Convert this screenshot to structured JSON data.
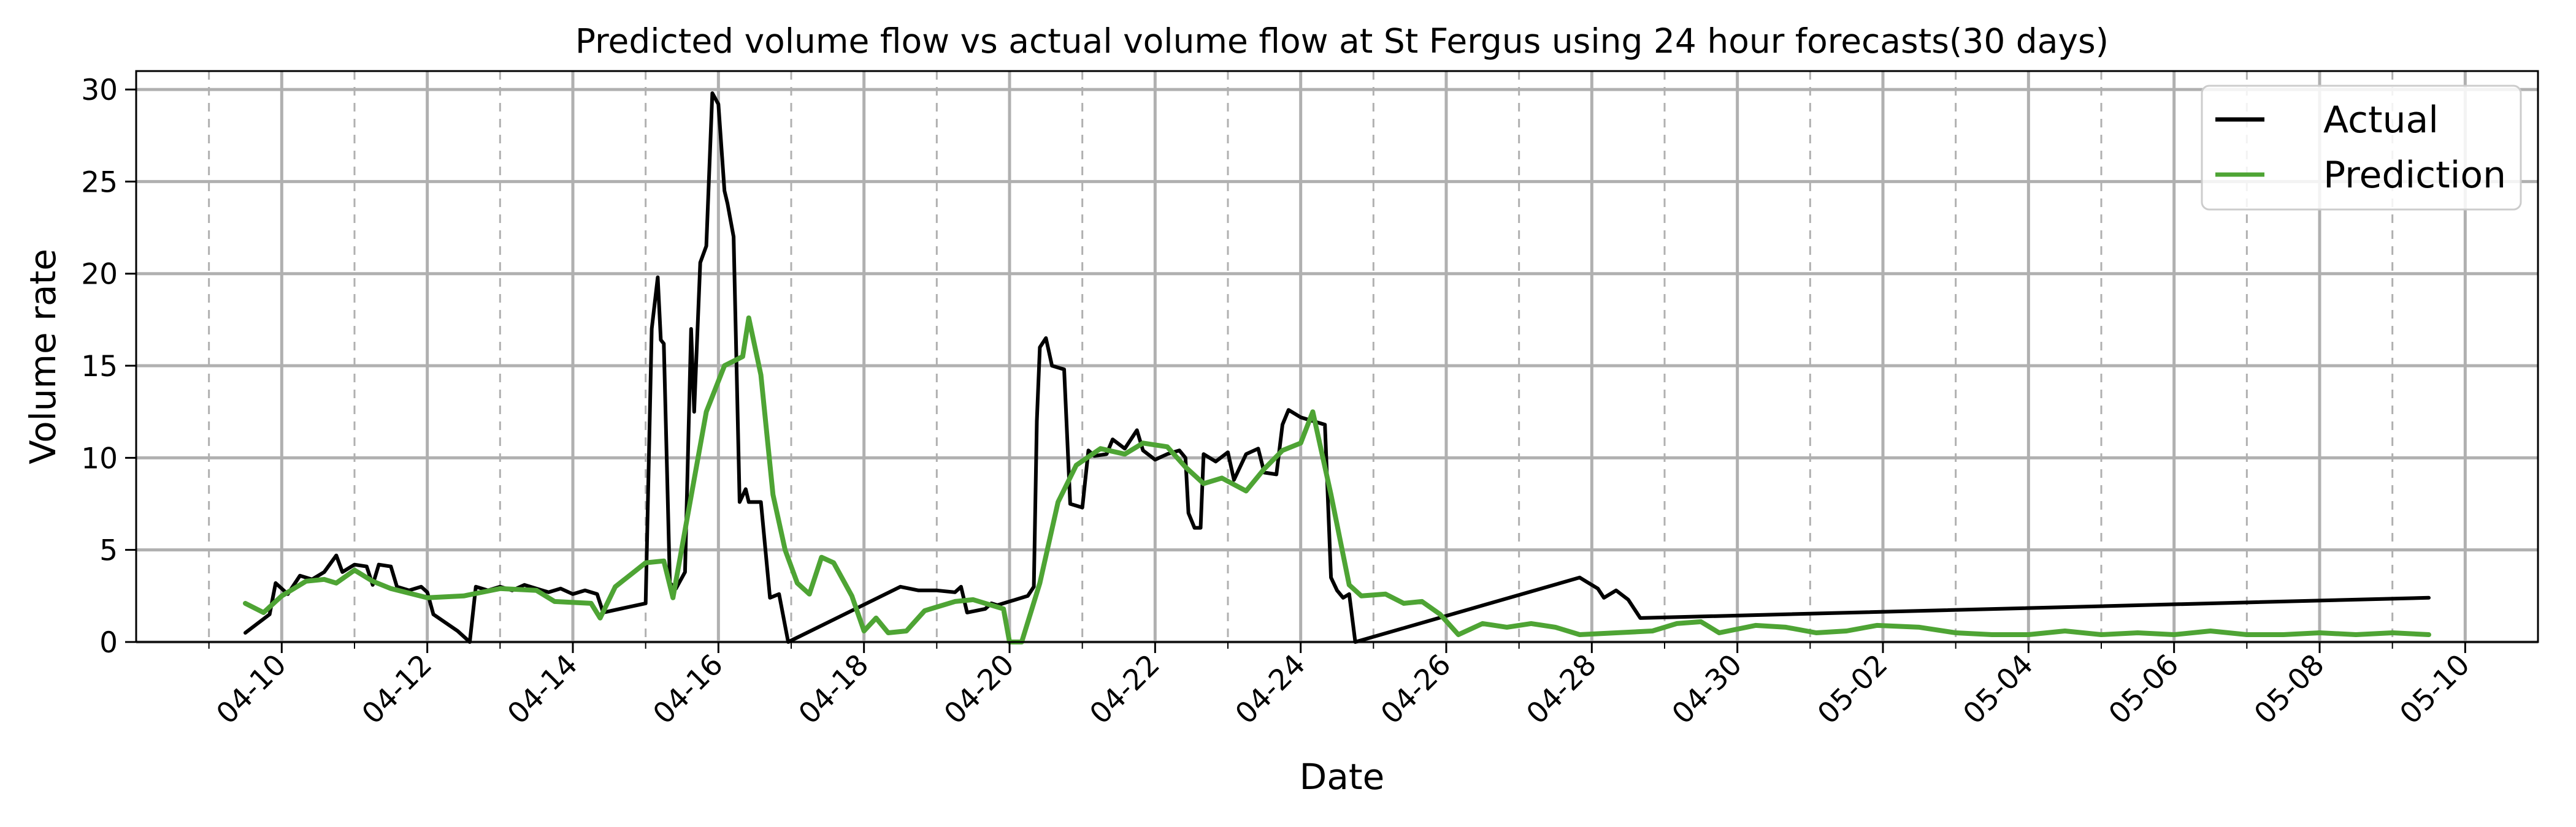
{
  "chart_data": {
    "type": "line",
    "title": "Predicted volume flow vs actual volume flow at St Fergus using 24 hour forecasts(30 days)",
    "xlabel": "Date",
    "ylabel": "Volume rate",
    "ylim": [
      0,
      31
    ],
    "xlim": [
      "2024-04-08",
      "2024-05-11"
    ],
    "x_ticks": [
      "04-10",
      "04-12",
      "04-14",
      "04-16",
      "04-18",
      "04-20",
      "04-22",
      "04-24",
      "04-26",
      "04-28",
      "04-30",
      "05-02",
      "05-04",
      "05-06",
      "05-08",
      "05-10"
    ],
    "y_ticks": [
      "0",
      "5",
      "10",
      "15",
      "20",
      "25",
      "30"
    ],
    "grid": true,
    "legend_position": "top-right",
    "series": [
      {
        "name": "Actual",
        "color": "#000000",
        "points": [
          [
            "2024-04-09 12:00",
            0.5
          ],
          [
            "2024-04-09 16:00",
            1.0
          ],
          [
            "2024-04-09 20:00",
            1.5
          ],
          [
            "2024-04-09 22:00",
            3.2
          ],
          [
            "2024-04-10 02:00",
            2.6
          ],
          [
            "2024-04-10 06:00",
            3.6
          ],
          [
            "2024-04-10 10:00",
            3.4
          ],
          [
            "2024-04-10 14:00",
            3.8
          ],
          [
            "2024-04-10 18:00",
            4.7
          ],
          [
            "2024-04-10 20:00",
            3.8
          ],
          [
            "2024-04-11 00:00",
            4.2
          ],
          [
            "2024-04-11 04:00",
            4.1
          ],
          [
            "2024-04-11 06:00",
            3.1
          ],
          [
            "2024-04-11 08:00",
            4.2
          ],
          [
            "2024-04-11 12:00",
            4.1
          ],
          [
            "2024-04-11 14:00",
            3.0
          ],
          [
            "2024-04-11 18:00",
            2.8
          ],
          [
            "2024-04-11 22:00",
            3.0
          ],
          [
            "2024-04-12 00:00",
            2.7
          ],
          [
            "2024-04-12 02:00",
            1.5
          ],
          [
            "2024-04-12 10:00",
            0.6
          ],
          [
            "2024-04-12 14:00",
            0.0
          ],
          [
            "2024-04-12 16:00",
            3.0
          ],
          [
            "2024-04-12 20:00",
            2.8
          ],
          [
            "2024-04-13 00:00",
            3.0
          ],
          [
            "2024-04-13 04:00",
            2.8
          ],
          [
            "2024-04-13 08:00",
            3.1
          ],
          [
            "2024-04-13 16:00",
            2.7
          ],
          [
            "2024-04-13 20:00",
            2.9
          ],
          [
            "2024-04-14 00:00",
            2.6
          ],
          [
            "2024-04-14 04:00",
            2.8
          ],
          [
            "2024-04-14 08:00",
            2.6
          ],
          [
            "2024-04-14 10:00",
            1.6
          ],
          [
            "2024-04-15 00:00",
            2.1
          ],
          [
            "2024-04-15 02:00",
            17.0
          ],
          [
            "2024-04-15 04:00",
            19.8
          ],
          [
            "2024-04-15 05:00",
            16.4
          ],
          [
            "2024-04-15 06:00",
            16.2
          ],
          [
            "2024-04-15 08:00",
            3.2
          ],
          [
            "2024-04-15 10:00",
            2.9
          ],
          [
            "2024-04-15 13:00",
            3.8
          ],
          [
            "2024-04-15 15:00",
            17.0
          ],
          [
            "2024-04-15 16:00",
            12.5
          ],
          [
            "2024-04-15 18:00",
            20.6
          ],
          [
            "2024-04-15 20:00",
            21.5
          ],
          [
            "2024-04-15 22:00",
            29.8
          ],
          [
            "2024-04-16 00:00",
            29.2
          ],
          [
            "2024-04-16 02:00",
            24.5
          ],
          [
            "2024-04-16 03:00",
            23.8
          ],
          [
            "2024-04-16 05:00",
            22.0
          ],
          [
            "2024-04-16 07:00",
            7.6
          ],
          [
            "2024-04-16 09:00",
            8.3
          ],
          [
            "2024-04-16 10:00",
            7.6
          ],
          [
            "2024-04-16 14:00",
            7.6
          ],
          [
            "2024-04-16 17:00",
            2.4
          ],
          [
            "2024-04-16 20:00",
            2.6
          ],
          [
            "2024-04-16 23:00",
            0.0
          ],
          [
            "2024-04-18 12:00",
            3.0
          ],
          [
            "2024-04-18 18:00",
            2.8
          ],
          [
            "2024-04-19 00:00",
            2.8
          ],
          [
            "2024-04-19 06:00",
            2.7
          ],
          [
            "2024-04-19 08:00",
            3.0
          ],
          [
            "2024-04-19 10:00",
            1.6
          ],
          [
            "2024-04-19 16:00",
            1.8
          ],
          [
            "2024-04-19 18:00",
            2.1
          ],
          [
            "2024-04-19 20:00",
            2.0
          ],
          [
            "2024-04-20 06:00",
            2.5
          ],
          [
            "2024-04-20 08:00",
            3.0
          ],
          [
            "2024-04-20 09:00",
            12.0
          ],
          [
            "2024-04-20 10:00",
            16.0
          ],
          [
            "2024-04-20 12:00",
            16.5
          ],
          [
            "2024-04-20 14:00",
            15.0
          ],
          [
            "2024-04-20 18:00",
            14.8
          ],
          [
            "2024-04-20 20:00",
            7.5
          ],
          [
            "2024-04-21 00:00",
            7.3
          ],
          [
            "2024-04-21 02:00",
            10.4
          ],
          [
            "2024-04-21 04:00",
            10.1
          ],
          [
            "2024-04-21 08:00",
            10.2
          ],
          [
            "2024-04-21 10:00",
            11.0
          ],
          [
            "2024-04-21 14:00",
            10.5
          ],
          [
            "2024-04-21 18:00",
            11.5
          ],
          [
            "2024-04-21 20:00",
            10.4
          ],
          [
            "2024-04-22 00:00",
            9.9
          ],
          [
            "2024-04-22 04:00",
            10.2
          ],
          [
            "2024-04-22 08:00",
            10.4
          ],
          [
            "2024-04-22 10:00",
            10.0
          ],
          [
            "2024-04-22 11:00",
            7.0
          ],
          [
            "2024-04-22 13:00",
            6.2
          ],
          [
            "2024-04-22 15:00",
            6.2
          ],
          [
            "2024-04-22 16:00",
            10.2
          ],
          [
            "2024-04-22 20:00",
            9.8
          ],
          [
            "2024-04-23 00:00",
            10.3
          ],
          [
            "2024-04-23 02:00",
            8.8
          ],
          [
            "2024-04-23 06:00",
            10.2
          ],
          [
            "2024-04-23 10:00",
            10.5
          ],
          [
            "2024-04-23 12:00",
            9.2
          ],
          [
            "2024-04-23 16:00",
            9.1
          ],
          [
            "2024-04-23 18:00",
            11.8
          ],
          [
            "2024-04-23 20:00",
            12.6
          ],
          [
            "2024-04-24 00:00",
            12.2
          ],
          [
            "2024-04-24 04:00",
            12.0
          ],
          [
            "2024-04-24 08:00",
            11.8
          ],
          [
            "2024-04-24 10:00",
            3.5
          ],
          [
            "2024-04-24 12:00",
            2.8
          ],
          [
            "2024-04-24 14:00",
            2.4
          ],
          [
            "2024-04-24 16:00",
            2.6
          ],
          [
            "2024-04-24 18:00",
            0.0
          ],
          [
            "2024-04-27 20:00",
            3.5
          ],
          [
            "2024-04-27 22:00",
            3.3
          ],
          [
            "2024-04-28 02:00",
            2.9
          ],
          [
            "2024-04-28 04:00",
            2.4
          ],
          [
            "2024-04-28 08:00",
            2.8
          ],
          [
            "2024-04-28 12:00",
            2.3
          ],
          [
            "2024-04-28 16:00",
            1.3
          ],
          [
            "2024-05-09 12:00",
            2.4
          ]
        ]
      },
      {
        "name": "Prediction",
        "color": "#4ea434",
        "points": [
          [
            "2024-04-09 12:00",
            2.1
          ],
          [
            "2024-04-09 18:00",
            1.6
          ],
          [
            "2024-04-10 00:00",
            2.5
          ],
          [
            "2024-04-10 08:00",
            3.3
          ],
          [
            "2024-04-10 14:00",
            3.4
          ],
          [
            "2024-04-10 18:00",
            3.2
          ],
          [
            "2024-04-11 00:00",
            3.9
          ],
          [
            "2024-04-11 06:00",
            3.3
          ],
          [
            "2024-04-11 12:00",
            2.9
          ],
          [
            "2024-04-12 00:00",
            2.4
          ],
          [
            "2024-04-12 12:00",
            2.5
          ],
          [
            "2024-04-13 00:00",
            2.9
          ],
          [
            "2024-04-13 12:00",
            2.8
          ],
          [
            "2024-04-13 18:00",
            2.2
          ],
          [
            "2024-04-14 06:00",
            2.1
          ],
          [
            "2024-04-14 09:00",
            1.3
          ],
          [
            "2024-04-14 14:00",
            3.0
          ],
          [
            "2024-04-15 00:00",
            4.3
          ],
          [
            "2024-04-15 06:00",
            4.4
          ],
          [
            "2024-04-15 09:00",
            2.4
          ],
          [
            "2024-04-15 14:00",
            7.0
          ],
          [
            "2024-04-15 20:00",
            12.5
          ],
          [
            "2024-04-16 02:00",
            15.0
          ],
          [
            "2024-04-16 08:00",
            15.5
          ],
          [
            "2024-04-16 10:00",
            17.6
          ],
          [
            "2024-04-16 14:00",
            14.5
          ],
          [
            "2024-04-16 18:00",
            8.0
          ],
          [
            "2024-04-16 22:00",
            5.0
          ],
          [
            "2024-04-17 02:00",
            3.2
          ],
          [
            "2024-04-17 06:00",
            2.6
          ],
          [
            "2024-04-17 10:00",
            4.6
          ],
          [
            "2024-04-17 14:00",
            4.3
          ],
          [
            "2024-04-17 20:00",
            2.5
          ],
          [
            "2024-04-18 00:00",
            0.6
          ],
          [
            "2024-04-18 04:00",
            1.3
          ],
          [
            "2024-04-18 08:00",
            0.5
          ],
          [
            "2024-04-18 14:00",
            0.6
          ],
          [
            "2024-04-18 20:00",
            1.7
          ],
          [
            "2024-04-19 06:00",
            2.2
          ],
          [
            "2024-04-19 12:00",
            2.3
          ],
          [
            "2024-04-19 18:00",
            2.0
          ],
          [
            "2024-04-19 22:00",
            1.8
          ],
          [
            "2024-04-20 00:00",
            0.0
          ],
          [
            "2024-04-20 04:00",
            0.0
          ],
          [
            "2024-04-20 10:00",
            3.2
          ],
          [
            "2024-04-20 16:00",
            7.6
          ],
          [
            "2024-04-20 22:00",
            9.6
          ],
          [
            "2024-04-21 06:00",
            10.5
          ],
          [
            "2024-04-21 14:00",
            10.2
          ],
          [
            "2024-04-21 20:00",
            10.8
          ],
          [
            "2024-04-22 04:00",
            10.6
          ],
          [
            "2024-04-22 10:00",
            9.5
          ],
          [
            "2024-04-22 16:00",
            8.6
          ],
          [
            "2024-04-22 22:00",
            8.9
          ],
          [
            "2024-04-23 06:00",
            8.2
          ],
          [
            "2024-04-23 12:00",
            9.4
          ],
          [
            "2024-04-23 18:00",
            10.4
          ],
          [
            "2024-04-24 00:00",
            10.8
          ],
          [
            "2024-04-24 04:00",
            12.5
          ],
          [
            "2024-04-24 10:00",
            8.0
          ],
          [
            "2024-04-24 16:00",
            3.1
          ],
          [
            "2024-04-24 20:00",
            2.5
          ],
          [
            "2024-04-25 04:00",
            2.6
          ],
          [
            "2024-04-25 10:00",
            2.1
          ],
          [
            "2024-04-25 16:00",
            2.2
          ],
          [
            "2024-04-25 22:00",
            1.5
          ],
          [
            "2024-04-26 04:00",
            0.4
          ],
          [
            "2024-04-26 12:00",
            1.0
          ],
          [
            "2024-04-26 20:00",
            0.8
          ],
          [
            "2024-04-27 04:00",
            1.0
          ],
          [
            "2024-04-27 12:00",
            0.8
          ],
          [
            "2024-04-27 20:00",
            0.4
          ],
          [
            "2024-04-28 08:00",
            0.5
          ],
          [
            "2024-04-28 20:00",
            0.6
          ],
          [
            "2024-04-29 04:00",
            1.0
          ],
          [
            "2024-04-29 12:00",
            1.1
          ],
          [
            "2024-04-29 18:00",
            0.5
          ],
          [
            "2024-04-30 06:00",
            0.9
          ],
          [
            "2024-04-30 16:00",
            0.8
          ],
          [
            "2024-05-01 02:00",
            0.5
          ],
          [
            "2024-05-01 12:00",
            0.6
          ],
          [
            "2024-05-01 22:00",
            0.9
          ],
          [
            "2024-05-02 12:00",
            0.8
          ],
          [
            "2024-05-03 00:00",
            0.5
          ],
          [
            "2024-05-03 12:00",
            0.4
          ],
          [
            "2024-05-04 00:00",
            0.4
          ],
          [
            "2024-05-04 12:00",
            0.6
          ],
          [
            "2024-05-05 00:00",
            0.4
          ],
          [
            "2024-05-05 12:00",
            0.5
          ],
          [
            "2024-05-06 00:00",
            0.4
          ],
          [
            "2024-05-06 12:00",
            0.6
          ],
          [
            "2024-05-07 00:00",
            0.4
          ],
          [
            "2024-05-07 12:00",
            0.4
          ],
          [
            "2024-05-08 00:00",
            0.5
          ],
          [
            "2024-05-08 12:00",
            0.4
          ],
          [
            "2024-05-09 00:00",
            0.5
          ],
          [
            "2024-05-09 12:00",
            0.4
          ]
        ]
      }
    ]
  }
}
